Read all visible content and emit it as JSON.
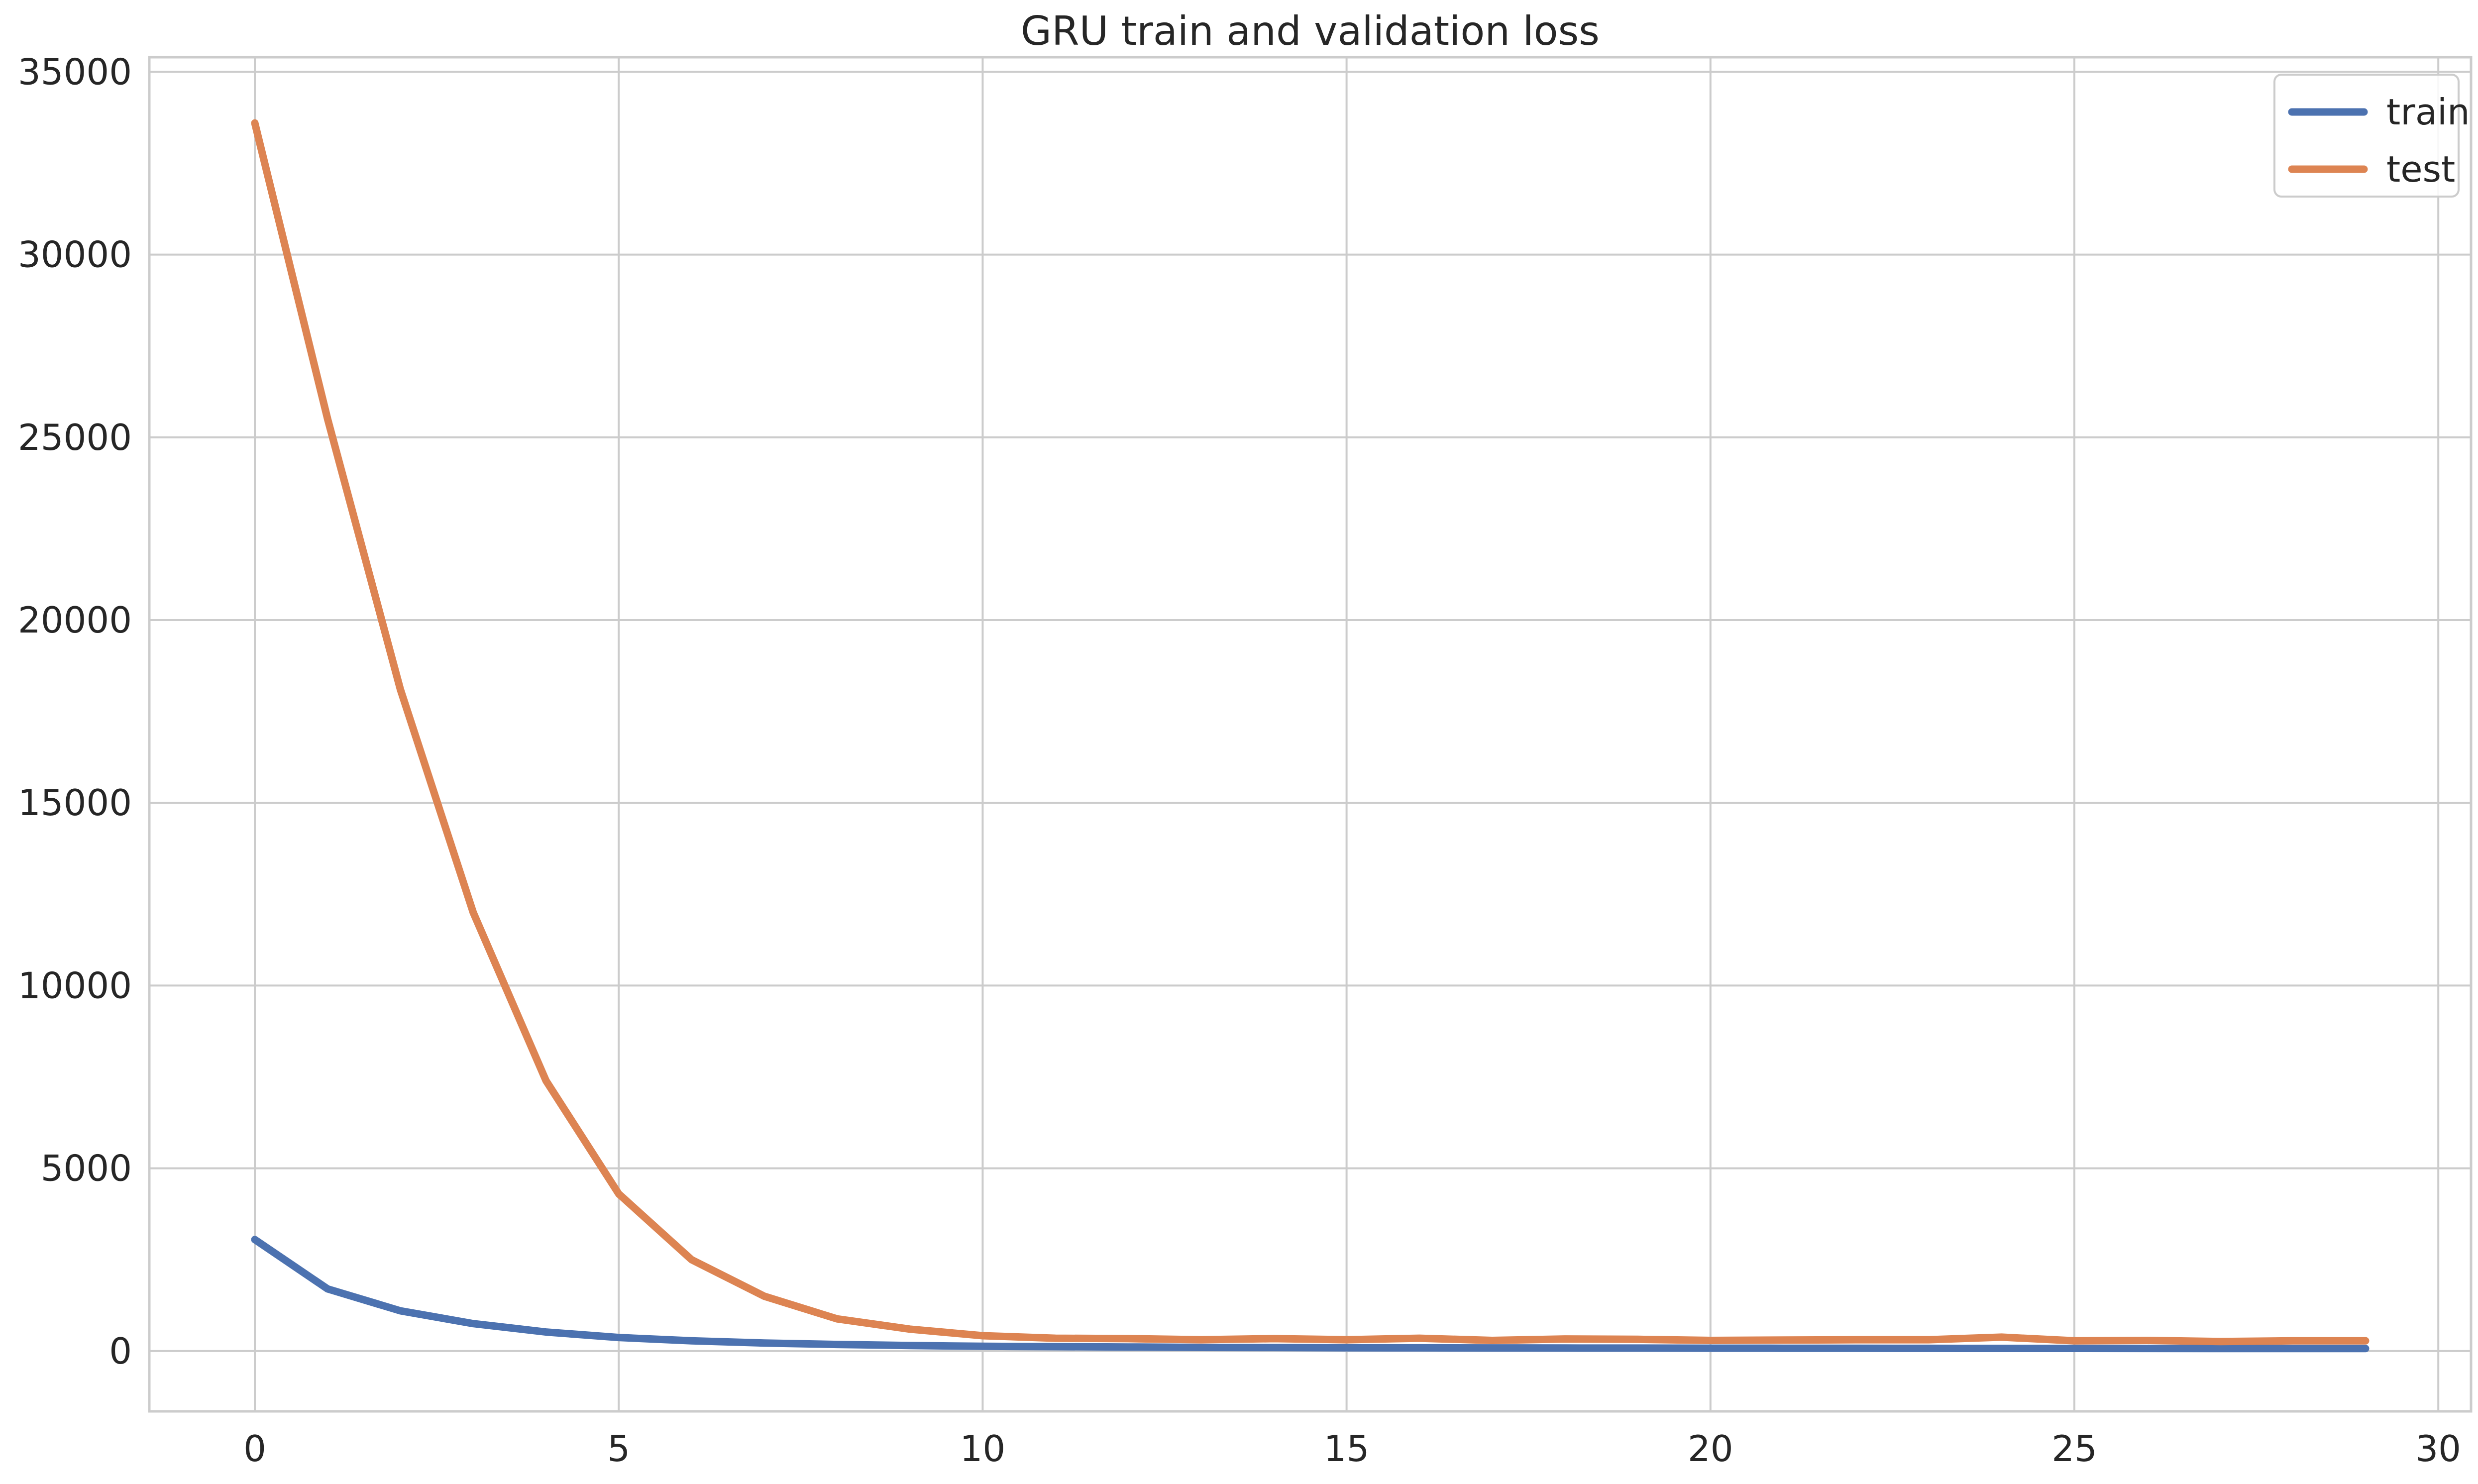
{
  "chart_data": {
    "type": "line",
    "title": "GRU train and validation loss",
    "xlabel": "",
    "ylabel": "",
    "xlim": [
      -1.45,
      30.45
    ],
    "ylim": [
      -1650,
      35400
    ],
    "xticks": [
      0,
      5,
      10,
      15,
      20,
      25,
      30
    ],
    "yticks": [
      0,
      5000,
      10000,
      15000,
      20000,
      25000,
      30000,
      35000
    ],
    "grid": true,
    "legend_position": "top-right",
    "x": [
      0,
      1,
      2,
      3,
      4,
      5,
      6,
      7,
      8,
      9,
      10,
      11,
      12,
      13,
      14,
      15,
      16,
      17,
      18,
      19,
      20,
      21,
      22,
      23,
      24,
      25,
      26,
      27,
      28,
      29
    ],
    "series": [
      {
        "name": "train",
        "color": "#4c72b0",
        "values": [
          3050,
          1700,
          1100,
          750,
          520,
          370,
          280,
          220,
          180,
          150,
          130,
          120,
          110,
          100,
          95,
          90,
          88,
          85,
          82,
          80,
          78,
          76,
          75,
          74,
          73,
          72,
          71,
          70,
          69,
          68
        ]
      },
      {
        "name": "test",
        "color": "#dd8452",
        "values": [
          33600,
          25500,
          18100,
          12000,
          7400,
          4300,
          2500,
          1500,
          880,
          600,
          420,
          350,
          340,
          310,
          340,
          310,
          350,
          290,
          330,
          320,
          290,
          300,
          310,
          310,
          380,
          280,
          290,
          260,
          280,
          280
        ]
      }
    ]
  }
}
